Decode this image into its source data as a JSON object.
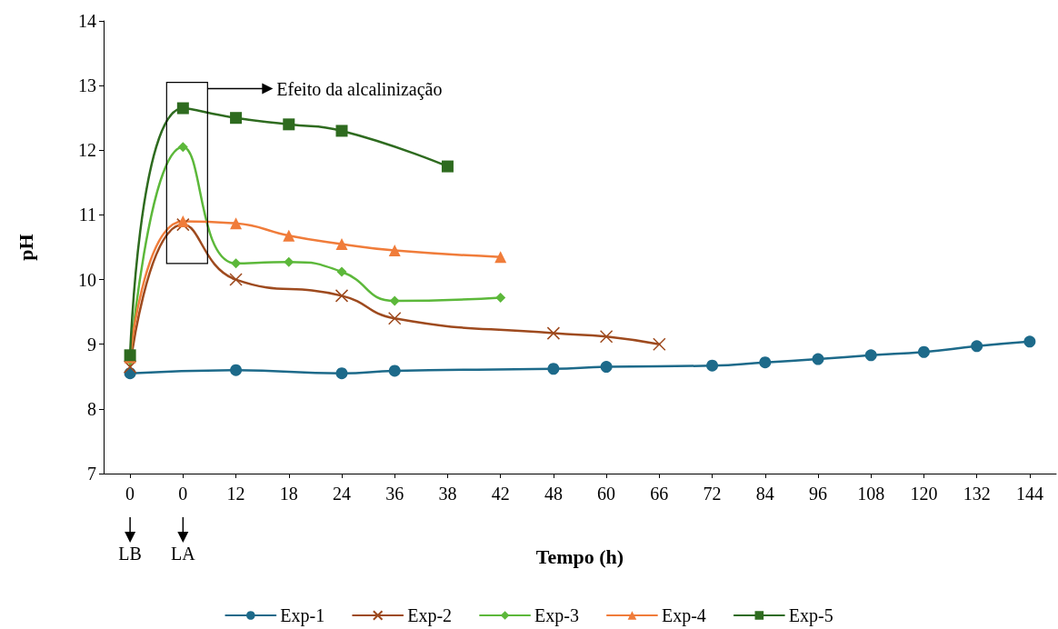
{
  "chart_data": {
    "type": "line",
    "xlabel": "Tempo (h)",
    "ylabel": "pH",
    "categories": [
      "0",
      "0",
      "12",
      "18",
      "24",
      "36",
      "38",
      "42",
      "48",
      "60",
      "66",
      "72",
      "84",
      "96",
      "108",
      "120",
      "132",
      "144"
    ],
    "ylim": [
      7,
      14
    ],
    "yticks": [
      7,
      8,
      9,
      10,
      11,
      12,
      13,
      14
    ],
    "grid": false,
    "legend": "bottom",
    "annotations": [
      "Efeito da alcalinização",
      "LB",
      "LA"
    ],
    "series": [
      {
        "name": "Exp-1",
        "color": "#1d6a8a",
        "marker": "circle",
        "values": [
          8.55,
          null,
          8.6,
          null,
          8.55,
          8.59,
          null,
          null,
          8.62,
          8.65,
          null,
          8.67,
          8.72,
          8.77,
          8.83,
          8.88,
          8.97,
          9.04
        ]
      },
      {
        "name": "Exp-2",
        "color": "#9e4a1e",
        "marker": "cross",
        "values": [
          8.65,
          10.85,
          10.0,
          null,
          9.75,
          9.4,
          null,
          null,
          9.17,
          9.12,
          9.0,
          null,
          null,
          null,
          null,
          null,
          null,
          null
        ]
      },
      {
        "name": "Exp-3",
        "color": "#5cb83a",
        "marker": "diamond",
        "values": [
          8.75,
          12.05,
          10.25,
          10.27,
          10.12,
          9.67,
          null,
          9.72,
          null,
          null,
          null,
          null,
          null,
          null,
          null,
          null,
          null,
          null
        ]
      },
      {
        "name": "Exp-4",
        "color": "#f07c3a",
        "marker": "triangle",
        "values": [
          8.8,
          10.9,
          10.87,
          10.68,
          10.55,
          10.45,
          null,
          10.35,
          null,
          null,
          null,
          null,
          null,
          null,
          null,
          null,
          null,
          null
        ]
      },
      {
        "name": "Exp-5",
        "color": "#2e6b1f",
        "marker": "square",
        "values": [
          8.83,
          12.65,
          12.5,
          12.4,
          12.3,
          null,
          11.75,
          null,
          null,
          null,
          null,
          null,
          null,
          null,
          null,
          null,
          null,
          null
        ]
      }
    ]
  }
}
